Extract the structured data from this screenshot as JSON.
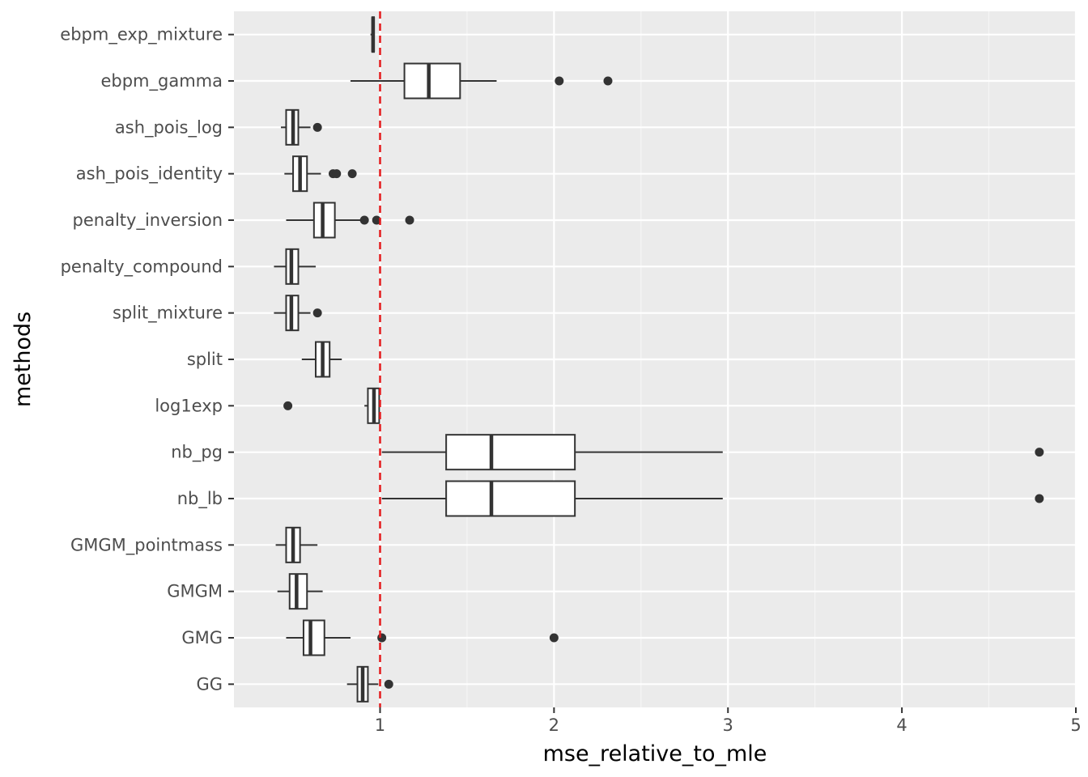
{
  "chart_data": {
    "type": "boxplot",
    "orientation": "horizontal",
    "title": "",
    "xlabel": "mse_relative_to_mle",
    "ylabel": "methods",
    "xlim": [
      0.16,
      5.0
    ],
    "xticks": [
      1,
      2,
      3,
      4,
      5
    ],
    "xtick_labels": [
      "1",
      "2",
      "3",
      "4",
      "5"
    ],
    "grid": true,
    "reference_line": {
      "x": 1,
      "style": "dashed",
      "color": "#e41a1c"
    },
    "colors": {
      "panel": "#ebebeb",
      "grid_major": "#ffffff",
      "grid_minor": "#f5f5f5",
      "box_line": "#333333",
      "box_fill": "#ffffff",
      "tick_text": "#4d4d4d"
    },
    "categories": [
      "ebpm_exp_mixture",
      "ebpm_gamma",
      "ash_pois_log",
      "ash_pois_identity",
      "penalty_inversion",
      "penalty_compound",
      "split_mixture",
      "split",
      "log1exp",
      "nb_pg",
      "nb_lb",
      "GMGM_pointmass",
      "GMGM",
      "GMG",
      "GG"
    ],
    "boxes": [
      {
        "method": "ebpm_exp_mixture",
        "whisker_low": 0.945,
        "q1": 0.955,
        "median": 0.96,
        "q3": 0.965,
        "whisker_high": 0.97,
        "outliers": []
      },
      {
        "method": "ebpm_gamma",
        "whisker_low": 0.83,
        "q1": 1.14,
        "median": 1.28,
        "q3": 1.46,
        "whisker_high": 1.67,
        "outliers": [
          2.03,
          2.31
        ]
      },
      {
        "method": "ash_pois_log",
        "whisker_low": 0.43,
        "q1": 0.46,
        "median": 0.5,
        "q3": 0.53,
        "whisker_high": 0.6,
        "outliers": [
          0.64
        ]
      },
      {
        "method": "ash_pois_identity",
        "whisker_low": 0.45,
        "q1": 0.5,
        "median": 0.54,
        "q3": 0.58,
        "whisker_high": 0.66,
        "outliers": [
          0.73,
          0.75,
          0.84
        ]
      },
      {
        "method": "penalty_inversion",
        "whisker_low": 0.46,
        "q1": 0.62,
        "median": 0.67,
        "q3": 0.74,
        "whisker_high": 0.89,
        "outliers": [
          0.91,
          0.98,
          1.17
        ]
      },
      {
        "method": "penalty_compound",
        "whisker_low": 0.39,
        "q1": 0.46,
        "median": 0.49,
        "q3": 0.53,
        "whisker_high": 0.63,
        "outliers": []
      },
      {
        "method": "split_mixture",
        "whisker_low": 0.39,
        "q1": 0.46,
        "median": 0.49,
        "q3": 0.53,
        "whisker_high": 0.6,
        "outliers": [
          0.64
        ]
      },
      {
        "method": "split",
        "whisker_low": 0.55,
        "q1": 0.63,
        "median": 0.67,
        "q3": 0.71,
        "whisker_high": 0.78,
        "outliers": []
      },
      {
        "method": "log1exp",
        "whisker_low": 0.91,
        "q1": 0.93,
        "median": 0.965,
        "q3": 0.995,
        "whisker_high": 1.0,
        "outliers": [
          0.47
        ]
      },
      {
        "method": "nb_pg",
        "whisker_low": 1.01,
        "q1": 1.38,
        "median": 1.64,
        "q3": 2.12,
        "whisker_high": 2.97,
        "outliers": [
          4.79
        ]
      },
      {
        "method": "nb_lb",
        "whisker_low": 1.01,
        "q1": 1.38,
        "median": 1.64,
        "q3": 2.12,
        "whisker_high": 2.97,
        "outliers": [
          4.79
        ]
      },
      {
        "method": "GMGM_pointmass",
        "whisker_low": 0.4,
        "q1": 0.46,
        "median": 0.5,
        "q3": 0.54,
        "whisker_high": 0.64,
        "outliers": []
      },
      {
        "method": "GMGM",
        "whisker_low": 0.41,
        "q1": 0.48,
        "median": 0.52,
        "q3": 0.58,
        "whisker_high": 0.67,
        "outliers": []
      },
      {
        "method": "GMG",
        "whisker_low": 0.46,
        "q1": 0.56,
        "median": 0.6,
        "q3": 0.68,
        "whisker_high": 0.83,
        "outliers": [
          1.01,
          2.0
        ]
      },
      {
        "method": "GG",
        "whisker_low": 0.81,
        "q1": 0.87,
        "median": 0.9,
        "q3": 0.93,
        "whisker_high": 0.99,
        "outliers": [
          1.05
        ]
      }
    ]
  }
}
